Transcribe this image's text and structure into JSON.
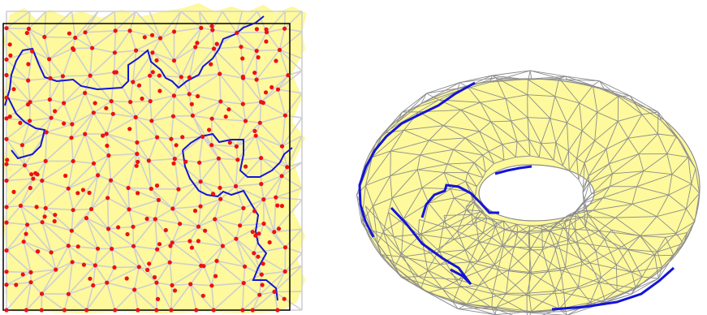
{
  "figure": {
    "panels": [
      {
        "name": "planar-triangulation-panel",
        "kind": "flat-domain-mesh-with-sample-points"
      },
      {
        "name": "torus-mesh-panel",
        "kind": "torus-surface-mesh"
      }
    ]
  },
  "colors": {
    "mesh_fill": "#fdf99c",
    "mesh_edges_left": "#cfcfcf",
    "mesh_edges_right": "#8c8c8c",
    "sample_points": "#ee1111",
    "boundary_path": "#1414d8",
    "square_frame": "#000000",
    "background": "#ffffff"
  }
}
